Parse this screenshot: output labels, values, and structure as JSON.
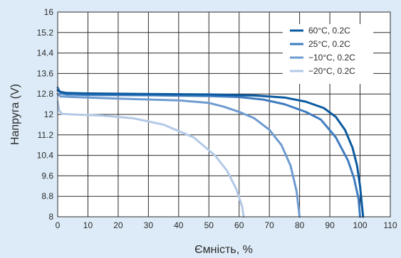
{
  "chart_data": {
    "type": "line",
    "xlabel": "Ємність, %",
    "ylabel": "Напруга (V)",
    "xlim": [
      0,
      110
    ],
    "ylim": [
      8,
      16
    ],
    "x_ticks": [
      0,
      10,
      20,
      30,
      40,
      50,
      60,
      70,
      80,
      90,
      100,
      110
    ],
    "y_ticks": [
      "8",
      "8.8",
      "9.6",
      "10.4",
      "11.2",
      "12",
      "12.8",
      "13.6",
      "14.4",
      "15.2",
      "16"
    ],
    "grid": true,
    "legend_position": "top-right",
    "series": [
      {
        "name": "60°C, 0.2C",
        "color": "#0b5aa0",
        "points": [
          [
            0,
            12.95
          ],
          [
            1,
            12.88
          ],
          [
            3,
            12.84
          ],
          [
            10,
            12.82
          ],
          [
            30,
            12.8
          ],
          [
            50,
            12.78
          ],
          [
            65,
            12.74
          ],
          [
            75,
            12.66
          ],
          [
            82,
            12.5
          ],
          [
            88,
            12.25
          ],
          [
            92,
            11.9
          ],
          [
            95,
            11.4
          ],
          [
            97.5,
            10.7
          ],
          [
            99,
            10.0
          ],
          [
            100,
            9.2
          ],
          [
            101,
            8.0
          ]
        ]
      },
      {
        "name": "25°C, 0.2C",
        "color": "#3f7cc0",
        "points": [
          [
            0,
            13.05
          ],
          [
            1,
            12.82
          ],
          [
            3,
            12.78
          ],
          [
            10,
            12.76
          ],
          [
            30,
            12.75
          ],
          [
            50,
            12.72
          ],
          [
            60,
            12.68
          ],
          [
            68,
            12.58
          ],
          [
            75,
            12.4
          ],
          [
            82,
            12.1
          ],
          [
            87,
            11.8
          ],
          [
            92,
            11.1
          ],
          [
            96,
            10.2
          ],
          [
            98,
            9.5
          ],
          [
            99.5,
            8.7
          ],
          [
            100,
            8.0
          ]
        ]
      },
      {
        "name": "−10°C, 0.2C",
        "color": "#6e9bd1",
        "points": [
          [
            0,
            12.8
          ],
          [
            1,
            12.7
          ],
          [
            5,
            12.68
          ],
          [
            20,
            12.62
          ],
          [
            40,
            12.55
          ],
          [
            50,
            12.45
          ],
          [
            55,
            12.3
          ],
          [
            60,
            12.1
          ],
          [
            65,
            11.85
          ],
          [
            70,
            11.4
          ],
          [
            74,
            10.8
          ],
          [
            77,
            10.0
          ],
          [
            79,
            9.0
          ],
          [
            80,
            8.0
          ]
        ]
      },
      {
        "name": "−20°C, 0.2C",
        "color": "#b3c9e6",
        "points": [
          [
            0,
            12.5
          ],
          [
            0.5,
            12.15
          ],
          [
            1.5,
            12.02
          ],
          [
            5,
            12.0
          ],
          [
            15,
            11.95
          ],
          [
            25,
            11.85
          ],
          [
            35,
            11.6
          ],
          [
            45,
            11.1
          ],
          [
            52,
            10.4
          ],
          [
            56,
            9.8
          ],
          [
            59,
            9.1
          ],
          [
            61,
            8.4
          ],
          [
            61.5,
            8.0
          ]
        ]
      }
    ]
  }
}
